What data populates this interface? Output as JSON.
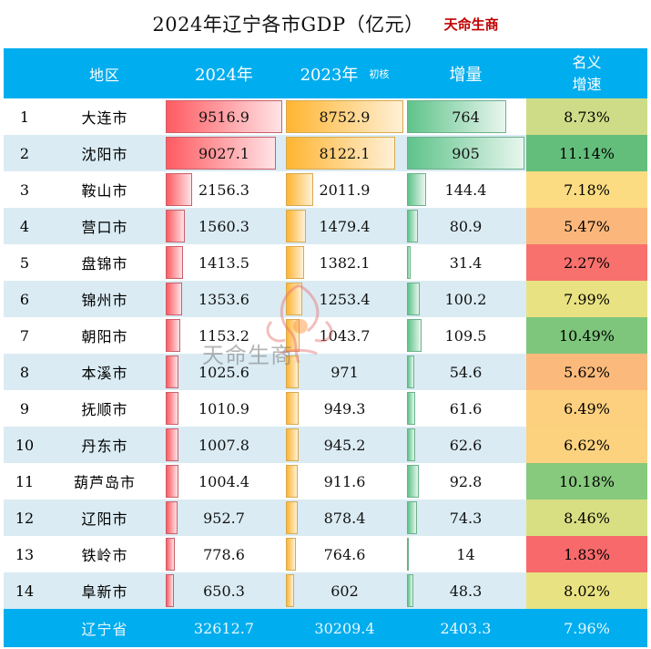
{
  "title": "2024年辽宁各市GDP（亿元）",
  "brand": "天命生商",
  "watermark_text": "天命生商",
  "headers": {
    "region": "地区",
    "y2024": "2024年",
    "y2023": "2023年",
    "y2023_note": "初核",
    "increase": "增量",
    "rate_line1": "名义",
    "rate_line2": "增速"
  },
  "footer": {
    "region": "辽宁省",
    "y2024": "32612.7",
    "y2023": "30209.4",
    "increase": "2403.3",
    "rate": "7.96%"
  },
  "colors": {
    "header_bg": "#00adee",
    "alt_row": "#daebf3",
    "bar_2024": "#ff5b61",
    "bar_2023": "#ffb531",
    "bar_increase": "#5fc38a"
  },
  "chart_data": {
    "type": "table",
    "title": "2024年辽宁各市GDP（亿元）",
    "columns": [
      "",
      "地区",
      "2024年",
      "2023年 初核",
      "增量",
      "名义增速"
    ],
    "rows": [
      {
        "rank": "1",
        "city": "大连市",
        "gdp2024": 9516.9,
        "gdp2024_text": "9516.9",
        "gdp2023": 8752.9,
        "gdp2023_text": "8752.9",
        "increase": 764,
        "increase_text": "764",
        "rate": "8.73%",
        "rate_color": "#cfdc87"
      },
      {
        "rank": "2",
        "city": "沈阳市",
        "gdp2024": 9027.1,
        "gdp2024_text": "9027.1",
        "gdp2023": 8122.1,
        "gdp2023_text": "8122.1",
        "increase": 905,
        "increase_text": "905",
        "rate": "11.14%",
        "rate_color": "#63be7b"
      },
      {
        "rank": "3",
        "city": "鞍山市",
        "gdp2024": 2156.3,
        "gdp2024_text": "2156.3",
        "gdp2023": 2011.9,
        "gdp2023_text": "2011.9",
        "increase": 144.4,
        "increase_text": "144.4",
        "rate": "7.18%",
        "rate_color": "#fcdc82"
      },
      {
        "rank": "4",
        "city": "营口市",
        "gdp2024": 1560.3,
        "gdp2024_text": "1560.3",
        "gdp2023": 1479.4,
        "gdp2023_text": "1479.4",
        "increase": 80.9,
        "increase_text": "80.9",
        "rate": "5.47%",
        "rate_color": "#fbb77b"
      },
      {
        "rank": "5",
        "city": "盘锦市",
        "gdp2024": 1413.5,
        "gdp2024_text": "1413.5",
        "gdp2023": 1382.1,
        "gdp2023_text": "1382.1",
        "increase": 31.4,
        "increase_text": "31.4",
        "rate": "2.27%",
        "rate_color": "#f8716d"
      },
      {
        "rank": "6",
        "city": "锦州市",
        "gdp2024": 1353.6,
        "gdp2024_text": "1353.6",
        "gdp2023": 1253.4,
        "gdp2023_text": "1253.4",
        "increase": 100.2,
        "increase_text": "100.2",
        "rate": "7.99%",
        "rate_color": "#e9e282"
      },
      {
        "rank": "7",
        "city": "朝阳市",
        "gdp2024": 1153.2,
        "gdp2024_text": "1153.2",
        "gdp2023": 1043.7,
        "gdp2023_text": "1043.7",
        "increase": 109.5,
        "increase_text": "109.5",
        "rate": "10.49%",
        "rate_color": "#7ec67c"
      },
      {
        "rank": "8",
        "city": "本溪市",
        "gdp2024": 1025.6,
        "gdp2024_text": "1025.6",
        "gdp2023": 971,
        "gdp2023_text": "971",
        "increase": 54.6,
        "increase_text": "54.6",
        "rate": "5.62%",
        "rate_color": "#fbba7b"
      },
      {
        "rank": "9",
        "city": "抚顺市",
        "gdp2024": 1010.9,
        "gdp2024_text": "1010.9",
        "gdp2023": 949.3,
        "gdp2023_text": "949.3",
        "increase": 61.6,
        "increase_text": "61.6",
        "rate": "6.49%",
        "rate_color": "#fcd07f"
      },
      {
        "rank": "10",
        "city": "丹东市",
        "gdp2024": 1007.8,
        "gdp2024_text": "1007.8",
        "gdp2023": 945.2,
        "gdp2023_text": "945.2",
        "increase": 62.6,
        "increase_text": "62.6",
        "rate": "6.62%",
        "rate_color": "#fcd27f"
      },
      {
        "rank": "11",
        "city": "葫芦岛市",
        "gdp2024": 1004.4,
        "gdp2024_text": "1004.4",
        "gdp2023": 911.6,
        "gdp2023_text": "911.6",
        "increase": 92.8,
        "increase_text": "92.8",
        "rate": "10.18%",
        "rate_color": "#87c97d"
      },
      {
        "rank": "12",
        "city": "辽阳市",
        "gdp2024": 952.7,
        "gdp2024_text": "952.7",
        "gdp2023": 878.4,
        "gdp2023_text": "878.4",
        "increase": 74.3,
        "increase_text": "74.3",
        "rate": "8.46%",
        "rate_color": "#d8df83"
      },
      {
        "rank": "13",
        "city": "铁岭市",
        "gdp2024": 778.6,
        "gdp2024_text": "778.6",
        "gdp2023": 764.6,
        "gdp2023_text": "764.6",
        "increase": 14,
        "increase_text": "14",
        "rate": "1.83%",
        "rate_color": "#f8696b"
      },
      {
        "rank": "14",
        "city": "阜新市",
        "gdp2024": 650.3,
        "gdp2024_text": "650.3",
        "gdp2023": 602,
        "gdp2023_text": "602",
        "increase": 48.3,
        "increase_text": "48.3",
        "rate": "8.02%",
        "rate_color": "#e8e282"
      }
    ],
    "bar_max": {
      "gdp2024": 9516.9,
      "gdp2023": 8752.9,
      "increase": 905
    }
  }
}
